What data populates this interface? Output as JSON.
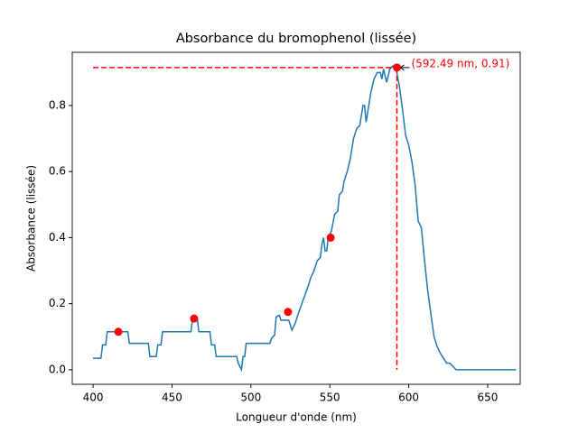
{
  "chart_data": {
    "type": "line",
    "title": "Absorbance du bromophenol (lissée)",
    "x_label": "Longueur d'onde (nm)",
    "y_label": "Absorbance (lissée)",
    "x": [
      400,
      405,
      406,
      408,
      409,
      422,
      423,
      435,
      436,
      440,
      441,
      443,
      444,
      462,
      463,
      466,
      467,
      474,
      475,
      477,
      478,
      491,
      492,
      494,
      495,
      496,
      497,
      512,
      513,
      515,
      516,
      518,
      519,
      521,
      524,
      526,
      528,
      530,
      533,
      536,
      538,
      540,
      542,
      544,
      545,
      546,
      547,
      548,
      549,
      551,
      553,
      555,
      556,
      558,
      559,
      561,
      563,
      565,
      567,
      569,
      571,
      572,
      573,
      574,
      576,
      578,
      580,
      582,
      583,
      584,
      586,
      588,
      590,
      592,
      594,
      596,
      598,
      600,
      602,
      604,
      606,
      608,
      610,
      612,
      614,
      616,
      618,
      620,
      622,
      624,
      626,
      628,
      630,
      668
    ],
    "values": [
      0.035,
      0.035,
      0.075,
      0.075,
      0.115,
      0.115,
      0.08,
      0.08,
      0.04,
      0.04,
      0.075,
      0.075,
      0.115,
      0.115,
      0.155,
      0.155,
      0.115,
      0.115,
      0.075,
      0.075,
      0.04,
      0.04,
      0.02,
      0,
      0.04,
      0.04,
      0.08,
      0.08,
      0.095,
      0.105,
      0.16,
      0.165,
      0.15,
      0.15,
      0.15,
      0.12,
      0.14,
      0.17,
      0.21,
      0.25,
      0.28,
      0.3,
      0.33,
      0.34,
      0.38,
      0.4,
      0.36,
      0.36,
      0.4,
      0.42,
      0.47,
      0.48,
      0.53,
      0.54,
      0.57,
      0.6,
      0.64,
      0.7,
      0.73,
      0.74,
      0.8,
      0.8,
      0.75,
      0.78,
      0.84,
      0.88,
      0.9,
      0.9,
      0.88,
      0.91,
      0.87,
      0.91,
      0.92,
      0.91,
      0.86,
      0.79,
      0.71,
      0.68,
      0.63,
      0.56,
      0.45,
      0.43,
      0.33,
      0.24,
      0.17,
      0.1,
      0.07,
      0.05,
      0.035,
      0.02,
      0.02,
      0.01,
      0,
      0
    ],
    "color": "#1f77b4",
    "markers": {
      "x": [
        416,
        464,
        523.5,
        550.5,
        592.49
      ],
      "values": [
        0.115,
        0.155,
        0.175,
        0.4,
        0.915
      ],
      "color": "#ff0000"
    },
    "guide_lines": {
      "x_start": 400,
      "y_end": 0,
      "color": "#ff0000"
    },
    "annotation": {
      "text": "(592.49 nm, 0.91)",
      "x": 592.49,
      "y": 0.915,
      "color": "#ff0000"
    },
    "xlim": [
      386.8,
      670.6
    ],
    "ylim": [
      -0.044,
      0.961
    ],
    "xticks": [
      400,
      450,
      500,
      550,
      600,
      650
    ],
    "yticks": [
      {
        "value": 0,
        "label": "0.0"
      },
      {
        "value": 0.2,
        "label": "0.2"
      },
      {
        "value": 0.4,
        "label": "0.4"
      },
      {
        "value": 0.6,
        "label": "0.6"
      },
      {
        "value": 0.8,
        "label": "0.8"
      }
    ]
  }
}
